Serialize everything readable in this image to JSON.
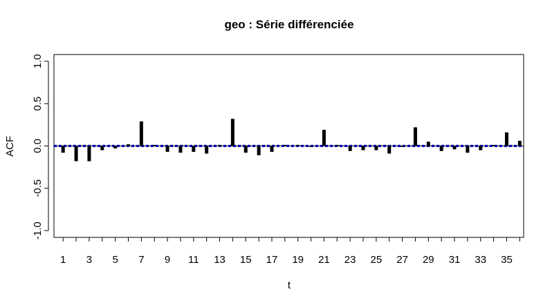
{
  "chart_data": {
    "type": "bar",
    "title": "geo : Série différenciée",
    "xlabel": "t",
    "ylabel": "ACF",
    "xlim": [
      0.3,
      36.3
    ],
    "ylim": [
      -1.08,
      1.08
    ],
    "x_ticks": [
      1,
      2,
      3,
      4,
      5,
      6,
      7,
      8,
      9,
      10,
      11,
      12,
      13,
      14,
      15,
      16,
      17,
      18,
      19,
      20,
      21,
      22,
      23,
      24,
      25,
      26,
      27,
      28,
      29,
      30,
      31,
      32,
      33,
      34,
      35,
      36
    ],
    "x_tick_labels": [
      "1",
      "3",
      "5",
      "7",
      "9",
      "11",
      "13",
      "15",
      "17",
      "19",
      "21",
      "23",
      "25",
      "27",
      "29",
      "31",
      "33",
      "35"
    ],
    "x_tick_label_values": [
      1,
      3,
      5,
      7,
      9,
      11,
      13,
      15,
      17,
      19,
      21,
      23,
      25,
      27,
      29,
      31,
      33,
      35
    ],
    "y_ticks": [
      -1.0,
      -0.5,
      0.0,
      0.5,
      1.0
    ],
    "y_tick_labels": [
      "-1.0",
      "-0.5",
      "0.0",
      "0.5",
      "1.0"
    ],
    "lags": [
      1,
      2,
      3,
      4,
      5,
      6,
      7,
      8,
      9,
      10,
      11,
      12,
      13,
      14,
      15,
      16,
      17,
      18,
      19,
      20,
      21,
      22,
      23,
      24,
      25,
      26,
      27,
      28,
      29,
      30,
      31,
      32,
      33,
      34,
      35,
      36
    ],
    "values": [
      -0.08,
      -0.18,
      -0.18,
      -0.05,
      -0.03,
      0.02,
      0.29,
      0.0,
      -0.07,
      -0.08,
      -0.07,
      -0.09,
      0.01,
      0.32,
      -0.08,
      -0.11,
      -0.07,
      0.0,
      0.0,
      -0.01,
      0.19,
      0.01,
      -0.06,
      -0.05,
      -0.05,
      -0.09,
      -0.01,
      0.22,
      0.05,
      -0.06,
      -0.04,
      -0.08,
      -0.05,
      0.0,
      0.16,
      0.06
    ],
    "confidence_band": [
      -0.008,
      0.008
    ],
    "colors": {
      "bars": "#000000",
      "confidence": "#0000ff"
    }
  }
}
